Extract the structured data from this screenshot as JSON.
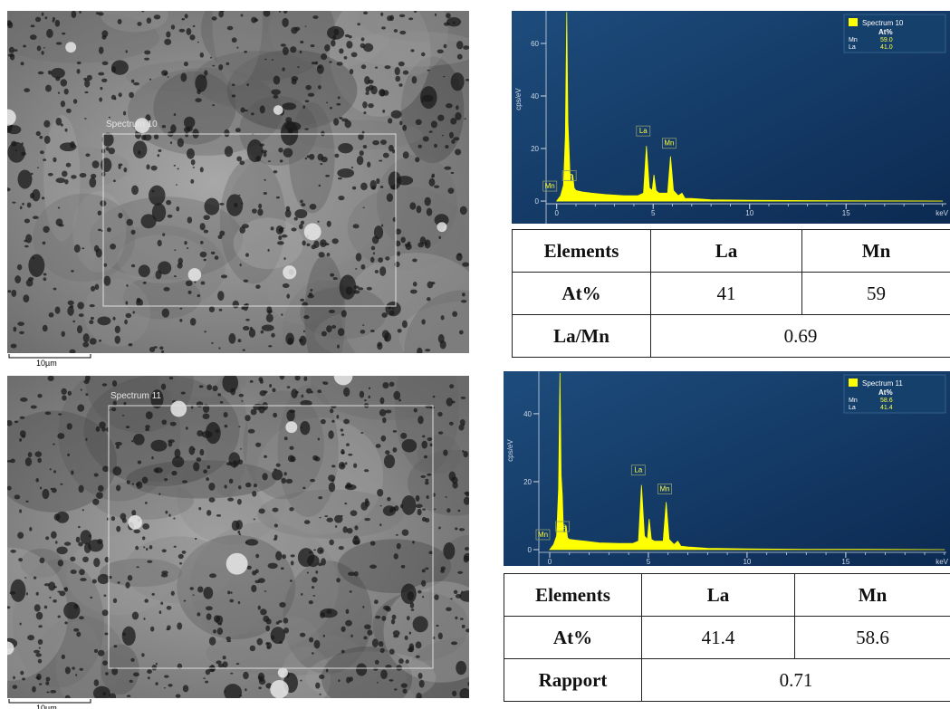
{
  "panels": [
    {
      "sem": {
        "region_label": "Spectrum 10",
        "scale_bar": "10µm"
      },
      "table": {
        "rows": [
          [
            "Elements",
            "La",
            "Mn"
          ],
          [
            "At%",
            "41",
            "59"
          ],
          [
            "La/Mn",
            "0.69"
          ]
        ]
      }
    },
    {
      "sem": {
        "region_label": "Spectrum 11",
        "scale_bar": "10µm"
      },
      "table": {
        "rows": [
          [
            "Elements",
            "La",
            "Mn"
          ],
          [
            "At%",
            "41.4",
            "58.6"
          ],
          [
            "Rapport",
            "0.71"
          ]
        ]
      }
    }
  ],
  "chart_data": [
    {
      "type": "area",
      "xlabel": "keV",
      "ylabel": "cps/eV",
      "color": "#ffff00",
      "legend": {
        "title": "Spectrum 10",
        "header": "At%",
        "rows": [
          [
            "Mn",
            "59.0"
          ],
          [
            "La",
            "41.0"
          ]
        ]
      },
      "annotations": [
        "Mn",
        "La",
        "La",
        "Mn"
      ],
      "x": [
        0,
        0.2,
        0.35,
        0.45,
        0.52,
        0.58,
        0.64,
        0.7,
        0.78,
        0.83,
        0.9,
        1.0,
        1.3,
        1.8,
        2.5,
        3.5,
        4.2,
        4.5,
        4.65,
        4.8,
        4.95,
        5.04,
        5.15,
        5.3,
        5.5,
        5.75,
        5.9,
        6.05,
        6.3,
        6.49,
        6.65,
        7,
        8,
        10,
        13,
        16,
        20
      ],
      "values": [
        0,
        2,
        6,
        25,
        72,
        30,
        20,
        8,
        7,
        10,
        5,
        4,
        3.5,
        3,
        2.5,
        2,
        2,
        3,
        21,
        5,
        4,
        10,
        4,
        3,
        3,
        3,
        17,
        4,
        2,
        3,
        1,
        1,
        0.5,
        0.3,
        0.2,
        0.1,
        0
      ],
      "xlim": [
        -0.55,
        20.2
      ],
      "ylim": [
        -8.6,
        72.4
      ],
      "xticks": [
        0,
        5,
        10,
        15
      ],
      "yticks": [
        0,
        20,
        40,
        60
      ]
    },
    {
      "type": "area",
      "xlabel": "keV",
      "ylabel": "cps/eV",
      "color": "#ffff00",
      "legend": {
        "title": "Spectrum 11",
        "header": "At%",
        "rows": [
          [
            "Mn",
            "58.6"
          ],
          [
            "La",
            "41.4"
          ]
        ]
      },
      "annotations": [
        "Mn",
        "La",
        "La",
        "Mn"
      ],
      "x": [
        0,
        0.2,
        0.35,
        0.45,
        0.52,
        0.58,
        0.64,
        0.7,
        0.78,
        0.83,
        0.9,
        1.0,
        1.3,
        1.8,
        2.5,
        3.5,
        4.2,
        4.5,
        4.65,
        4.8,
        4.95,
        5.04,
        5.15,
        5.3,
        5.5,
        5.75,
        5.9,
        6.05,
        6.3,
        6.49,
        6.65,
        7,
        8,
        10,
        13,
        16,
        20
      ],
      "values": [
        0,
        1.5,
        4,
        18,
        52,
        22,
        16,
        5,
        5,
        7,
        3.5,
        3,
        2.8,
        2.5,
        2,
        1.8,
        1.8,
        2.5,
        19,
        4,
        3,
        9,
        3,
        2.5,
        2.5,
        2.5,
        14,
        3,
        1.5,
        2.5,
        1,
        0.8,
        0.4,
        0.2,
        0.1,
        0.1,
        0
      ],
      "xlim": [
        -0.55,
        20.1
      ],
      "ylim": [
        -4.8,
        52.5
      ],
      "xticks": [
        0,
        5,
        10,
        15
      ],
      "yticks": [
        0,
        20,
        40
      ]
    }
  ]
}
